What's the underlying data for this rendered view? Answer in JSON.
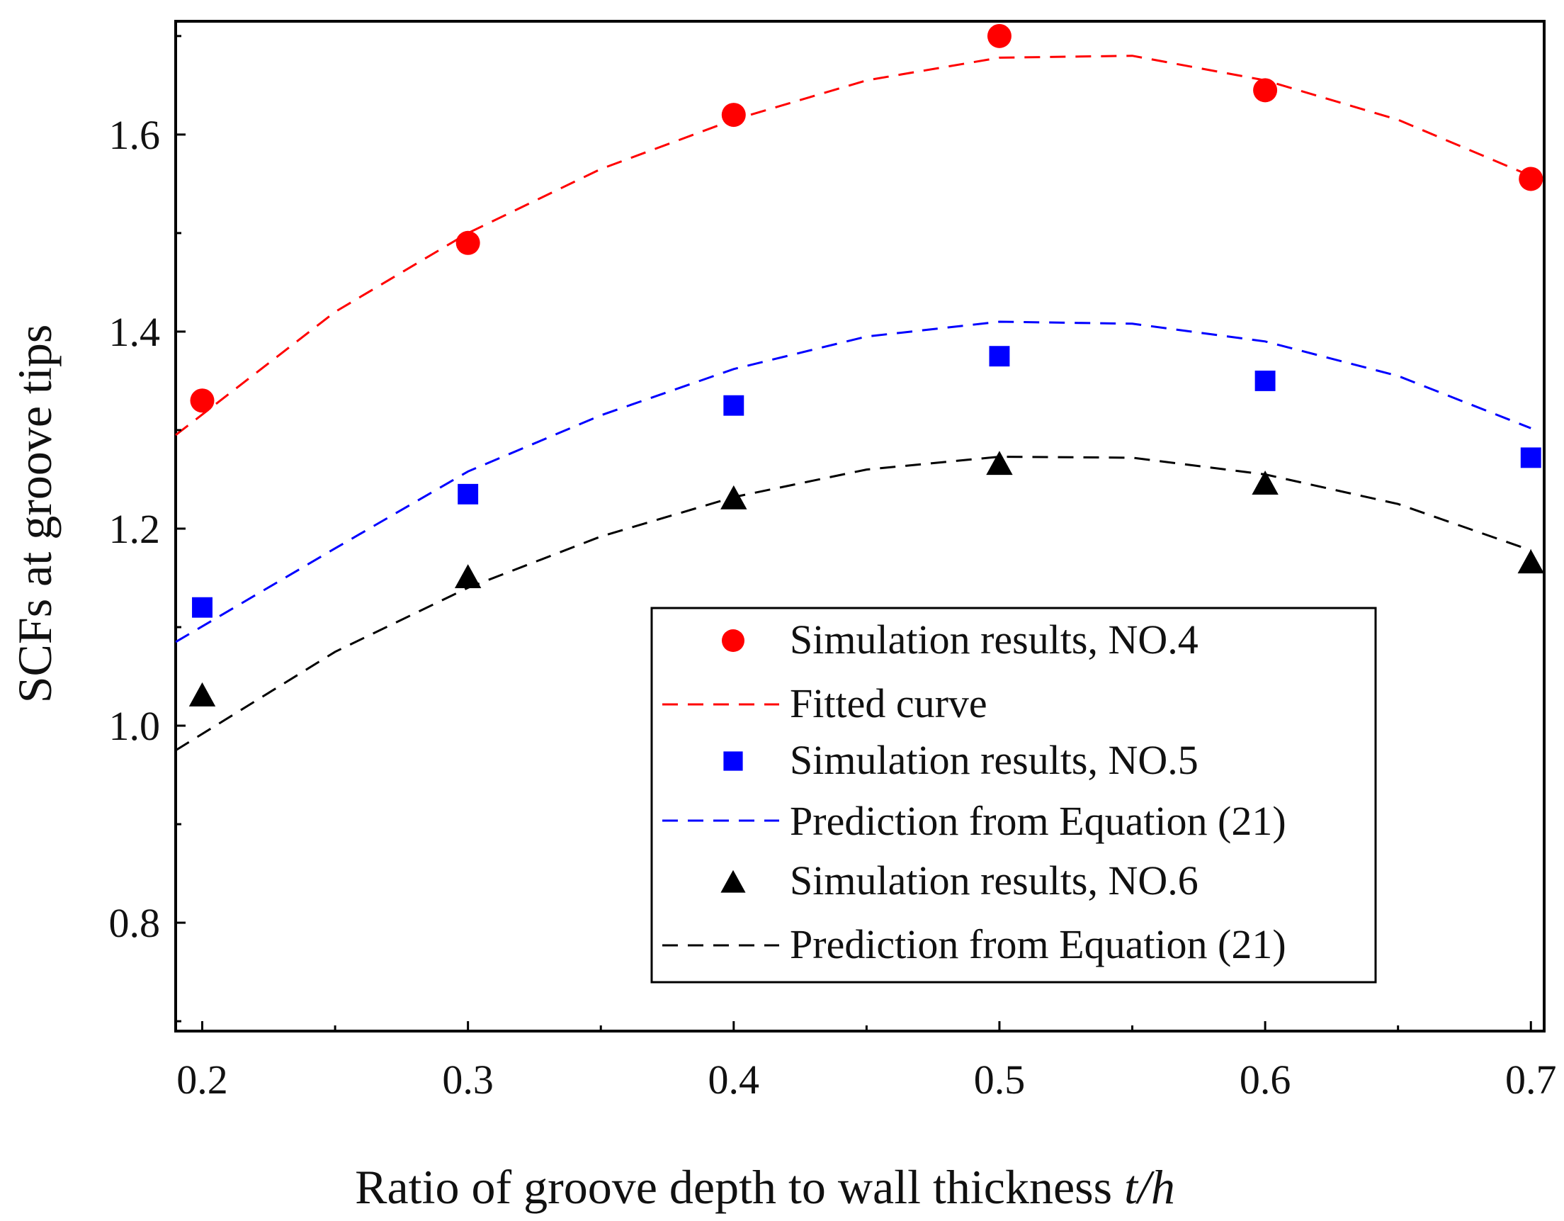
{
  "chart_data": {
    "type": "scatter",
    "title": "",
    "xlabel": "Ratio of groove depth to wall thickness",
    "xlabel_italic": "t/h",
    "ylabel": "SCFs at groove tips",
    "xlim": [
      0.19,
      0.705
    ],
    "ylim": [
      0.69,
      1.715
    ],
    "x_ticks": [
      0.2,
      0.3,
      0.4,
      0.5,
      0.6,
      0.7
    ],
    "x_tick_labels": [
      "0.2",
      "0.3",
      "0.4",
      "0.5",
      "0.6",
      "0.7"
    ],
    "y_ticks": [
      0.8,
      1.0,
      1.2,
      1.4,
      1.6
    ],
    "y_tick_labels": [
      "0.8",
      "1.0",
      "1.2",
      "1.4",
      "1.6"
    ],
    "grid": false,
    "legend_position": "bottom-right",
    "series": [
      {
        "name": "Simulation results, NO.4",
        "kind": "points",
        "marker": "circle",
        "color": "#ff0000",
        "x": [
          0.2,
          0.3,
          0.4,
          0.5,
          0.6,
          0.7
        ],
        "y": [
          1.33,
          1.49,
          1.62,
          1.7,
          1.645,
          1.555
        ]
      },
      {
        "name": "Fitted curve",
        "kind": "dashed-line",
        "color": "#ff0000",
        "x": [
          0.19,
          0.25,
          0.3,
          0.35,
          0.4,
          0.45,
          0.5,
          0.55,
          0.6,
          0.65,
          0.7
        ],
        "y": [
          1.295,
          1.42,
          1.5,
          1.565,
          1.615,
          1.655,
          1.678,
          1.68,
          1.655,
          1.615,
          1.558
        ]
      },
      {
        "name": "Simulation results, NO.5",
        "kind": "points",
        "marker": "square",
        "color": "#0000ff",
        "x": [
          0.2,
          0.3,
          0.4,
          0.5,
          0.6,
          0.7
        ],
        "y": [
          1.12,
          1.235,
          1.325,
          1.375,
          1.35,
          1.272
        ]
      },
      {
        "name": "Prediction from Equation (21)",
        "kind": "dashed-line",
        "color": "#0000ff",
        "x": [
          0.19,
          0.25,
          0.3,
          0.35,
          0.4,
          0.45,
          0.5,
          0.55,
          0.6,
          0.65,
          0.7
        ],
        "y": [
          1.085,
          1.18,
          1.258,
          1.315,
          1.362,
          1.395,
          1.41,
          1.408,
          1.39,
          1.355,
          1.302
        ]
      },
      {
        "name": "Simulation results, NO.6",
        "kind": "points",
        "marker": "triangle",
        "color": "#000000",
        "x": [
          0.2,
          0.3,
          0.4,
          0.5,
          0.6,
          0.7
        ],
        "y": [
          1.03,
          1.15,
          1.23,
          1.265,
          1.245,
          1.165
        ]
      },
      {
        "name": "Prediction from Equation (21)",
        "kind": "dashed-line",
        "color": "#000000",
        "x": [
          0.19,
          0.25,
          0.3,
          0.35,
          0.4,
          0.45,
          0.5,
          0.55,
          0.6,
          0.65,
          0.7
        ],
        "y": [
          0.975,
          1.075,
          1.14,
          1.192,
          1.232,
          1.26,
          1.273,
          1.272,
          1.255,
          1.225,
          1.178
        ]
      }
    ]
  }
}
